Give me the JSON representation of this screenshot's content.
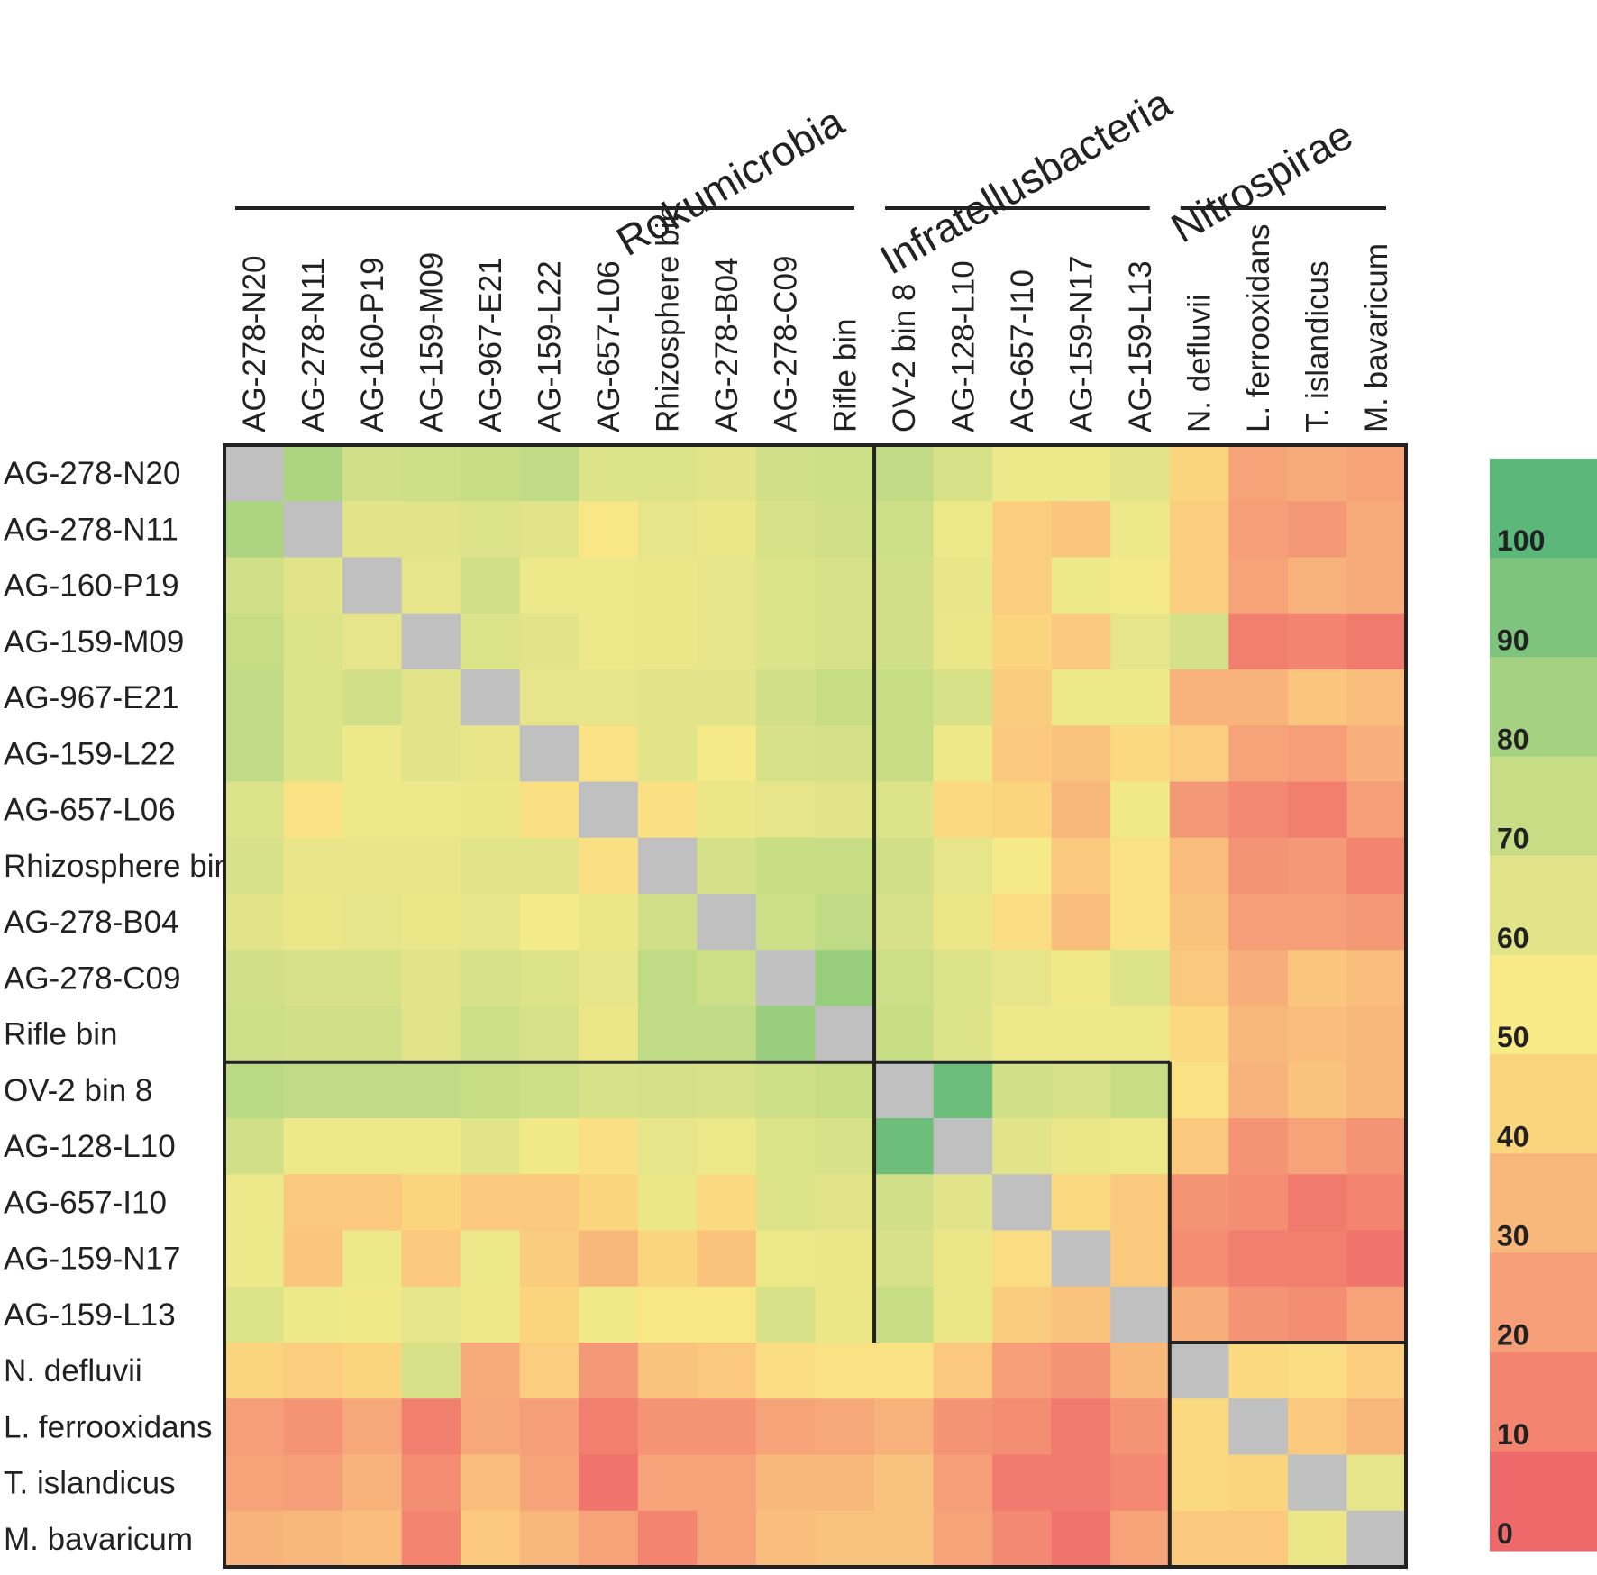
{
  "chart_data": {
    "type": "heatmap",
    "title": "",
    "labels": [
      "AG-278-N20",
      "AG-278-N11",
      "AG-160-P19",
      "AG-159-M09",
      "AG-967-E21",
      "AG-159-L22",
      "AG-657-L06",
      "Rhizosphere bin",
      "AG-278-B04",
      "AG-278-C09",
      "Rifle bin",
      "OV-2  bin 8",
      "AG-128-L10",
      "AG-657-I10",
      "AG-159-N17",
      "AG-159-L13",
      "N. defluvii",
      "L. ferrooxidans",
      "T. islandicus",
      "M. bavaricum"
    ],
    "groups": [
      {
        "name": "Rokumicrobia",
        "start": 0,
        "end": 10
      },
      {
        "name": "Infratellusbacteria",
        "start": 11,
        "end": 15
      },
      {
        "name": "Nitrospirae",
        "start": 16,
        "end": 19
      }
    ],
    "values": [
      [
        null,
        78,
        66,
        68,
        70,
        72,
        62,
        62,
        60,
        66,
        68,
        72,
        64,
        55,
        55,
        60,
        40,
        22,
        25,
        22
      ],
      [
        78,
        null,
        60,
        60,
        62,
        60,
        48,
        58,
        56,
        64,
        66,
        68,
        55,
        38,
        35,
        55,
        38,
        20,
        18,
        25
      ],
      [
        66,
        60,
        null,
        58,
        66,
        55,
        55,
        56,
        58,
        62,
        64,
        66,
        57,
        38,
        55,
        52,
        38,
        22,
        28,
        25
      ],
      [
        70,
        62,
        58,
        null,
        62,
        60,
        55,
        56,
        58,
        62,
        64,
        66,
        56,
        40,
        36,
        58,
        65,
        8,
        10,
        6
      ],
      [
        72,
        62,
        66,
        60,
        null,
        58,
        58,
        60,
        60,
        66,
        70,
        70,
        64,
        37,
        55,
        55,
        28,
        28,
        35,
        32
      ],
      [
        72,
        62,
        55,
        60,
        57,
        null,
        46,
        60,
        52,
        64,
        65,
        70,
        54,
        36,
        34,
        42,
        38,
        22,
        20,
        27
      ],
      [
        62,
        46,
        55,
        55,
        56,
        45,
        null,
        45,
        56,
        58,
        60,
        62,
        42,
        40,
        30,
        53,
        18,
        12,
        8,
        20
      ],
      [
        64,
        57,
        57,
        57,
        60,
        60,
        45,
        null,
        65,
        70,
        70,
        66,
        58,
        52,
        36,
        46,
        32,
        16,
        18,
        10
      ],
      [
        60,
        56,
        58,
        56,
        58,
        52,
        56,
        66,
        null,
        68,
        72,
        64,
        56,
        44,
        32,
        46,
        34,
        20,
        20,
        18
      ],
      [
        66,
        64,
        64,
        60,
        64,
        62,
        58,
        72,
        68,
        null,
        83,
        68,
        62,
        58,
        53,
        62,
        36,
        26,
        35,
        32
      ],
      [
        68,
        66,
        66,
        60,
        68,
        64,
        56,
        72,
        72,
        83,
        null,
        70,
        62,
        55,
        55,
        55,
        42,
        30,
        32,
        30
      ],
      [
        74,
        72,
        72,
        72,
        70,
        68,
        64,
        65,
        64,
        68,
        70,
        null,
        95,
        66,
        64,
        70,
        46,
        28,
        34,
        30
      ],
      [
        66,
        55,
        55,
        55,
        60,
        53,
        45,
        58,
        55,
        62,
        64,
        95,
        null,
        60,
        56,
        55,
        36,
        16,
        22,
        16
      ],
      [
        55,
        36,
        36,
        40,
        36,
        36,
        40,
        56,
        42,
        62,
        60,
        66,
        60,
        null,
        42,
        36,
        16,
        14,
        6,
        10
      ],
      [
        55,
        35,
        55,
        36,
        55,
        37,
        30,
        40,
        34,
        55,
        56,
        64,
        56,
        44,
        null,
        36,
        14,
        8,
        8,
        4
      ],
      [
        62,
        55,
        53,
        58,
        54,
        40,
        53,
        48,
        48,
        64,
        56,
        70,
        56,
        37,
        34,
        null,
        26,
        16,
        14,
        22
      ],
      [
        40,
        38,
        40,
        64,
        25,
        38,
        18,
        34,
        36,
        44,
        46,
        46,
        36,
        20,
        16,
        30,
        null,
        42,
        44,
        38
      ],
      [
        20,
        16,
        24,
        8,
        24,
        20,
        8,
        16,
        16,
        22,
        24,
        28,
        16,
        14,
        6,
        16,
        42,
        null,
        36,
        30
      ],
      [
        22,
        20,
        28,
        14,
        32,
        22,
        4,
        22,
        22,
        30,
        30,
        34,
        20,
        6,
        6,
        12,
        42,
        40,
        null,
        58
      ],
      [
        28,
        30,
        32,
        10,
        36,
        30,
        22,
        10,
        22,
        32,
        34,
        34,
        22,
        12,
        4,
        22,
        36,
        36,
        56,
        null
      ]
    ],
    "colorbar": {
      "ticks": [
        "100",
        "90",
        "80",
        "70",
        "60",
        "50",
        "40",
        "30",
        "20",
        "10",
        "0"
      ],
      "range": [
        0,
        100
      ],
      "colors": [
        "#ee6a6a",
        "#f28470",
        "#f59e78",
        "#f8b87c",
        "#fbd47e",
        "#f8eb87",
        "#e2e48a",
        "#c6dd86",
        "#a5d280",
        "#7fc47c",
        "#5cb87a"
      ],
      "diagonal_color": "#c0c0c0"
    }
  }
}
